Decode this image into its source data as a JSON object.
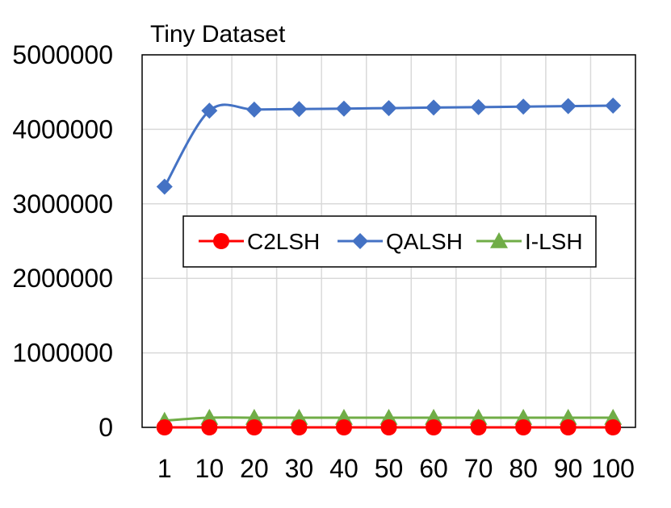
{
  "chart_data": {
    "type": "line",
    "title": "Tiny Dataset",
    "xlabel": "",
    "ylabel": "",
    "categories": [
      "1",
      "10",
      "20",
      "30",
      "40",
      "50",
      "60",
      "70",
      "80",
      "90",
      "100"
    ],
    "ylim": [
      0,
      5000000
    ],
    "yticks": [
      "0",
      "1000000",
      "2000000",
      "3000000",
      "4000000",
      "5000000"
    ],
    "grid": true,
    "legend_position": "center",
    "series": [
      {
        "name": "C2LSH",
        "color": "#ff0000",
        "marker": "circle",
        "values": [
          0,
          0,
          0,
          0,
          0,
          0,
          0,
          0,
          0,
          0,
          0
        ]
      },
      {
        "name": "QALSH",
        "color": "#4472c4",
        "marker": "diamond",
        "values": [
          3230000,
          4250000,
          4265000,
          4272000,
          4278000,
          4285000,
          4292000,
          4298000,
          4305000,
          4312000,
          4318000
        ]
      },
      {
        "name": "I-LSH",
        "color": "#70ad47",
        "marker": "triangle",
        "values": [
          90000,
          130000,
          130000,
          130000,
          130000,
          130000,
          130000,
          130000,
          130000,
          130000,
          130000
        ]
      }
    ]
  }
}
